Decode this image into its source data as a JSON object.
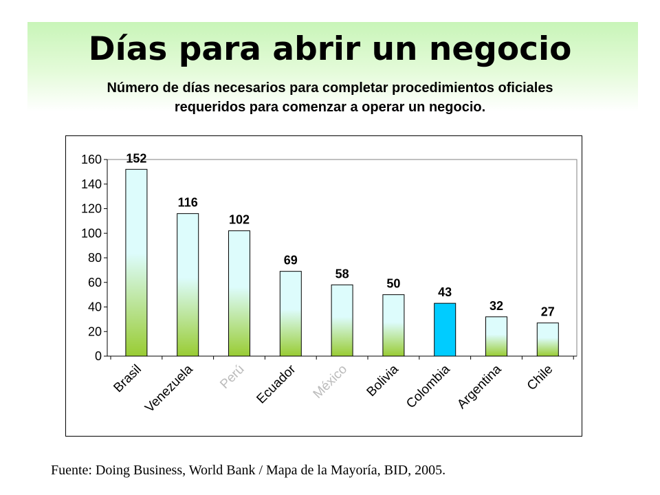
{
  "title": "Días para abrir un negocio",
  "subtitle_line1": "Número de días necesarios para completar procedimientos oficiales",
  "subtitle_line2": "requeridos para comenzar a operar un negocio.",
  "source": "Fuente: Doing Business, World Bank / Mapa de la Mayoría, BID, 2005.",
  "colors": {
    "bar_top": "#ddfcfc",
    "bar_bottom": "#99cc33",
    "highlight": "#00ccff",
    "faded_label": "#bbbbbb"
  },
  "chart_data": {
    "type": "bar",
    "categories": [
      "Brasil",
      "Venezuela",
      "Perú",
      "Ecuador",
      "México",
      "Bolivia",
      "Colombia",
      "Argentina",
      "Chile"
    ],
    "values": [
      152,
      116,
      102,
      69,
      58,
      50,
      43,
      32,
      27
    ],
    "data_labels": [
      "152",
      "116",
      "102",
      "69",
      "58",
      "50",
      "43",
      "32",
      "27"
    ],
    "highlighted_category": "Colombia",
    "faded_categories": [
      "Perú",
      "México"
    ],
    "yticks": [
      "0",
      "20",
      "40",
      "60",
      "80",
      "100",
      "120",
      "140",
      "160"
    ],
    "ylim": [
      0,
      160
    ],
    "grid": false,
    "legend": false
  }
}
